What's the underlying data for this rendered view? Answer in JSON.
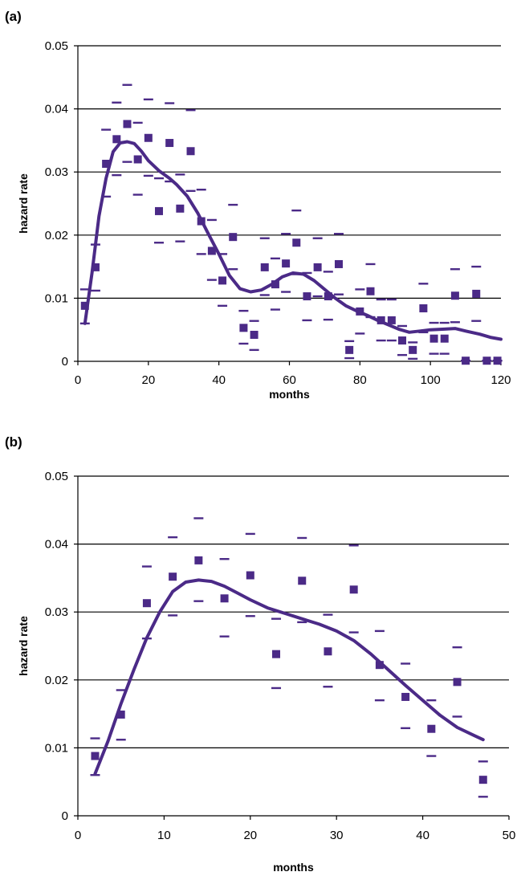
{
  "chart_data": [
    {
      "type": "scatter",
      "panel_label": "(a)",
      "xlabel": "months",
      "ylabel": "hazard rate",
      "xlim": [
        0,
        120
      ],
      "ylim": [
        0,
        0.05
      ],
      "xticks": [
        0,
        20,
        40,
        60,
        80,
        100,
        120
      ],
      "yticks": [
        0,
        0.01,
        0.02,
        0.03,
        0.04,
        0.05
      ],
      "ytick_labels": [
        "0",
        "0.01",
        "0.02",
        "0.03",
        "0.04",
        "0.05"
      ],
      "grid": "horizontal",
      "colors": {
        "series": "#4b2a87",
        "grid": "#000000"
      },
      "points": [
        {
          "x": 2,
          "y": 0.0088,
          "lo": 0.006,
          "hi": 0.0114
        },
        {
          "x": 5,
          "y": 0.0149,
          "lo": 0.0112,
          "hi": 0.0185
        },
        {
          "x": 8,
          "y": 0.0313,
          "lo": 0.0261,
          "hi": 0.0367
        },
        {
          "x": 11,
          "y": 0.0352,
          "lo": 0.0295,
          "hi": 0.041
        },
        {
          "x": 14,
          "y": 0.0376,
          "lo": 0.0316,
          "hi": 0.0438
        },
        {
          "x": 17,
          "y": 0.032,
          "lo": 0.0264,
          "hi": 0.0378
        },
        {
          "x": 20,
          "y": 0.0354,
          "lo": 0.0294,
          "hi": 0.0415
        },
        {
          "x": 23,
          "y": 0.0238,
          "lo": 0.0188,
          "hi": 0.029
        },
        {
          "x": 26,
          "y": 0.0346,
          "lo": 0.0285,
          "hi": 0.0409
        },
        {
          "x": 29,
          "y": 0.0242,
          "lo": 0.019,
          "hi": 0.0296
        },
        {
          "x": 32,
          "y": 0.0333,
          "lo": 0.027,
          "hi": 0.0398
        },
        {
          "x": 35,
          "y": 0.0222,
          "lo": 0.017,
          "hi": 0.0272
        },
        {
          "x": 38,
          "y": 0.0175,
          "lo": 0.0129,
          "hi": 0.0224
        },
        {
          "x": 41,
          "y": 0.0128,
          "lo": 0.0088,
          "hi": 0.017
        },
        {
          "x": 44,
          "y": 0.0197,
          "lo": 0.0146,
          "hi": 0.0248
        },
        {
          "x": 47,
          "y": 0.0053,
          "lo": 0.0028,
          "hi": 0.008
        },
        {
          "x": 50,
          "y": 0.0042,
          "lo": 0.0018,
          "hi": 0.0064
        },
        {
          "x": 53,
          "y": 0.0149,
          "lo": 0.0105,
          "hi": 0.0195
        },
        {
          "x": 56,
          "y": 0.0122,
          "lo": 0.0082,
          "hi": 0.0163
        },
        {
          "x": 59,
          "y": 0.0155,
          "lo": 0.011,
          "hi": 0.0202
        },
        {
          "x": 62,
          "y": 0.0188,
          "lo": 0.0138,
          "hi": 0.0239
        },
        {
          "x": 65,
          "y": 0.0103,
          "lo": 0.0065,
          "hi": 0.014
        },
        {
          "x": 68,
          "y": 0.0149,
          "lo": 0.0103,
          "hi": 0.0195
        },
        {
          "x": 71,
          "y": 0.0103,
          "lo": 0.0066,
          "hi": 0.0142
        },
        {
          "x": 74,
          "y": 0.0154,
          "lo": 0.0106,
          "hi": 0.0202
        },
        {
          "x": 77,
          "y": 0.0018,
          "lo": 0.0005,
          "hi": 0.0032
        },
        {
          "x": 80,
          "y": 0.0079,
          "lo": 0.0044,
          "hi": 0.0114
        },
        {
          "x": 83,
          "y": 0.0111,
          "lo": 0.007,
          "hi": 0.0154
        },
        {
          "x": 86,
          "y": 0.0065,
          "lo": 0.0033,
          "hi": 0.0098
        },
        {
          "x": 89,
          "y": 0.0065,
          "lo": 0.0033,
          "hi": 0.0098
        },
        {
          "x": 92,
          "y": 0.0033,
          "lo": 0.001,
          "hi": 0.0056
        },
        {
          "x": 95,
          "y": 0.0018,
          "lo": 0.0004,
          "hi": 0.003
        },
        {
          "x": 98,
          "y": 0.0084,
          "lo": 0.0046,
          "hi": 0.0123
        },
        {
          "x": 101,
          "y": 0.0036,
          "lo": 0.0012,
          "hi": 0.0061
        },
        {
          "x": 104,
          "y": 0.0036,
          "lo": 0.0012,
          "hi": 0.0061
        },
        {
          "x": 107,
          "y": 0.0104,
          "lo": 0.0062,
          "hi": 0.0146
        },
        {
          "x": 110,
          "y": 0.0001,
          "lo": 0.0001,
          "hi": 0.0001
        },
        {
          "x": 113,
          "y": 0.0107,
          "lo": 0.0064,
          "hi": 0.015
        },
        {
          "x": 116,
          "y": 0.0001,
          "lo": 0.0001,
          "hi": 0.0001
        },
        {
          "x": 119,
          "y": 0.0001,
          "lo": 0.0001,
          "hi": 0.0001
        }
      ],
      "smooth_curve": [
        [
          2,
          0.006
        ],
        [
          4,
          0.014
        ],
        [
          6,
          0.023
        ],
        [
          8,
          0.029
        ],
        [
          10,
          0.0332
        ],
        [
          12,
          0.0346
        ],
        [
          14,
          0.0348
        ],
        [
          16,
          0.0345
        ],
        [
          18,
          0.0333
        ],
        [
          20,
          0.0318
        ],
        [
          23,
          0.0302
        ],
        [
          26,
          0.029
        ],
        [
          28,
          0.028
        ],
        [
          31,
          0.0262
        ],
        [
          34,
          0.0235
        ],
        [
          37,
          0.0202
        ],
        [
          40,
          0.017
        ],
        [
          43,
          0.0136
        ],
        [
          46,
          0.0115
        ],
        [
          49,
          0.011
        ],
        [
          52,
          0.0113
        ],
        [
          55,
          0.0122
        ],
        [
          58,
          0.0134
        ],
        [
          61,
          0.014
        ],
        [
          64,
          0.0138
        ],
        [
          67,
          0.0128
        ],
        [
          70,
          0.0114
        ],
        [
          73,
          0.01
        ],
        [
          76,
          0.0088
        ],
        [
          79,
          0.008
        ],
        [
          82,
          0.0073
        ],
        [
          85,
          0.0065
        ],
        [
          88,
          0.0058
        ],
        [
          91,
          0.0051
        ],
        [
          94,
          0.0046
        ],
        [
          97,
          0.0048
        ],
        [
          100,
          0.005
        ],
        [
          104,
          0.0051
        ],
        [
          107,
          0.0052
        ],
        [
          110,
          0.0048
        ],
        [
          114,
          0.0043
        ],
        [
          117,
          0.0038
        ],
        [
          120,
          0.0035
        ]
      ]
    },
    {
      "type": "scatter",
      "panel_label": "(b)",
      "xlabel": "months",
      "ylabel": "hazard rate",
      "xlim": [
        0,
        50
      ],
      "ylim": [
        0,
        0.05
      ],
      "xticks": [
        0,
        10,
        20,
        30,
        40,
        50
      ],
      "yticks": [
        0,
        0.01,
        0.02,
        0.03,
        0.04,
        0.05
      ],
      "ytick_labels": [
        "0",
        "0.01",
        "0.02",
        "0.03",
        "0.04",
        "0.05"
      ],
      "grid": "horizontal",
      "colors": {
        "series": "#4b2a87",
        "grid": "#000000"
      },
      "points": [
        {
          "x": 2,
          "y": 0.0088,
          "lo": 0.006,
          "hi": 0.0114
        },
        {
          "x": 5,
          "y": 0.0149,
          "lo": 0.0112,
          "hi": 0.0185
        },
        {
          "x": 8,
          "y": 0.0313,
          "lo": 0.0261,
          "hi": 0.0367
        },
        {
          "x": 11,
          "y": 0.0352,
          "lo": 0.0295,
          "hi": 0.041
        },
        {
          "x": 14,
          "y": 0.0376,
          "lo": 0.0316,
          "hi": 0.0438
        },
        {
          "x": 17,
          "y": 0.032,
          "lo": 0.0264,
          "hi": 0.0378
        },
        {
          "x": 20,
          "y": 0.0354,
          "lo": 0.0294,
          "hi": 0.0415
        },
        {
          "x": 23,
          "y": 0.0238,
          "lo": 0.0188,
          "hi": 0.029
        },
        {
          "x": 26,
          "y": 0.0346,
          "lo": 0.0285,
          "hi": 0.0409
        },
        {
          "x": 29,
          "y": 0.0242,
          "lo": 0.019,
          "hi": 0.0296
        },
        {
          "x": 32,
          "y": 0.0333,
          "lo": 0.027,
          "hi": 0.0398
        },
        {
          "x": 35,
          "y": 0.0222,
          "lo": 0.017,
          "hi": 0.0272
        },
        {
          "x": 38,
          "y": 0.0175,
          "lo": 0.0129,
          "hi": 0.0224
        },
        {
          "x": 41,
          "y": 0.0128,
          "lo": 0.0088,
          "hi": 0.017
        },
        {
          "x": 44,
          "y": 0.0197,
          "lo": 0.0146,
          "hi": 0.0248
        },
        {
          "x": 47,
          "y": 0.0053,
          "lo": 0.0028,
          "hi": 0.008
        }
      ],
      "smooth_curve": [
        [
          2,
          0.0062
        ],
        [
          3.5,
          0.011
        ],
        [
          5,
          0.0165
        ],
        [
          6.5,
          0.0215
        ],
        [
          8,
          0.0262
        ],
        [
          9.5,
          0.03
        ],
        [
          11,
          0.033
        ],
        [
          12.5,
          0.0344
        ],
        [
          14,
          0.0347
        ],
        [
          15.5,
          0.0345
        ],
        [
          17,
          0.0338
        ],
        [
          18.5,
          0.0328
        ],
        [
          20,
          0.0318
        ],
        [
          22,
          0.0306
        ],
        [
          24,
          0.0298
        ],
        [
          26,
          0.029
        ],
        [
          28,
          0.0282
        ],
        [
          30,
          0.0272
        ],
        [
          32,
          0.0258
        ],
        [
          34,
          0.0238
        ],
        [
          36,
          0.0215
        ],
        [
          38,
          0.0192
        ],
        [
          40,
          0.017
        ],
        [
          42,
          0.0148
        ],
        [
          44,
          0.013
        ],
        [
          46,
          0.0118
        ],
        [
          47,
          0.0112
        ]
      ]
    }
  ]
}
